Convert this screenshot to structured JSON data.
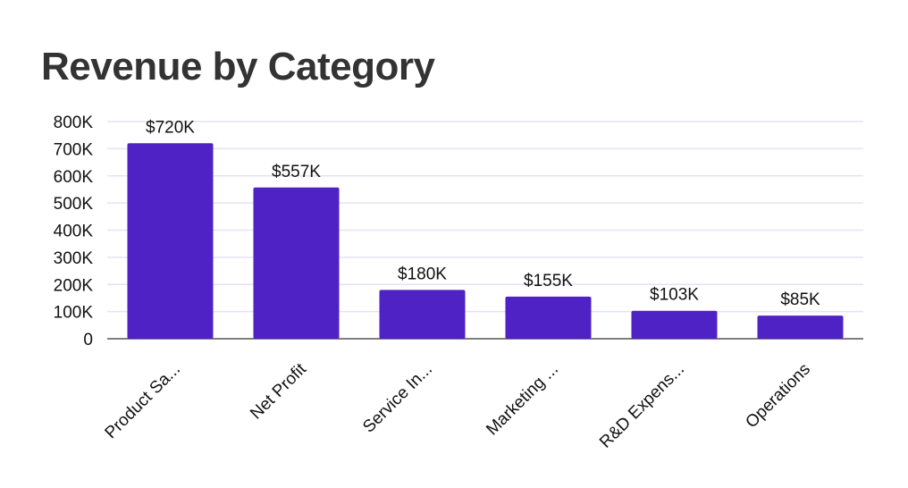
{
  "chart_data": {
    "type": "bar",
    "title": "Revenue by Category",
    "categories": [
      "Product Sa...",
      "Net Profit",
      "Service In...",
      "Marketing ...",
      "R&D Expens...",
      "Operations"
    ],
    "values": [
      720,
      557,
      180,
      155,
      103,
      85
    ],
    "data_labels": [
      "$720K",
      "$557K",
      "$180K",
      "$155K",
      "$103K",
      "$85K"
    ],
    "yticks": [
      0,
      100,
      200,
      300,
      400,
      500,
      600,
      700,
      800
    ],
    "ytick_labels": [
      "0",
      "100K",
      "200K",
      "300K",
      "400K",
      "500K",
      "600K",
      "700K",
      "800K"
    ],
    "ylim": [
      0,
      800
    ],
    "xlabel": "",
    "ylabel": "",
    "grid": true,
    "bar_color": "#4f22c6",
    "grid_color": "#e3e2f4",
    "axis_color": "#555555"
  }
}
